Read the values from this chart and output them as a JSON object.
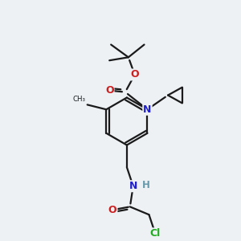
{
  "bg_color": "#edf1f4",
  "bond_color": "#1a1a1a",
  "atom_colors": {
    "N": "#2020cc",
    "O": "#cc2020",
    "Cl": "#22aa22",
    "H": "#6699aa",
    "C": "#1a1a1a"
  },
  "line_width": 1.6,
  "font_size_atom": 8.5,
  "fig_size": [
    3.0,
    3.0
  ],
  "dpi": 100
}
